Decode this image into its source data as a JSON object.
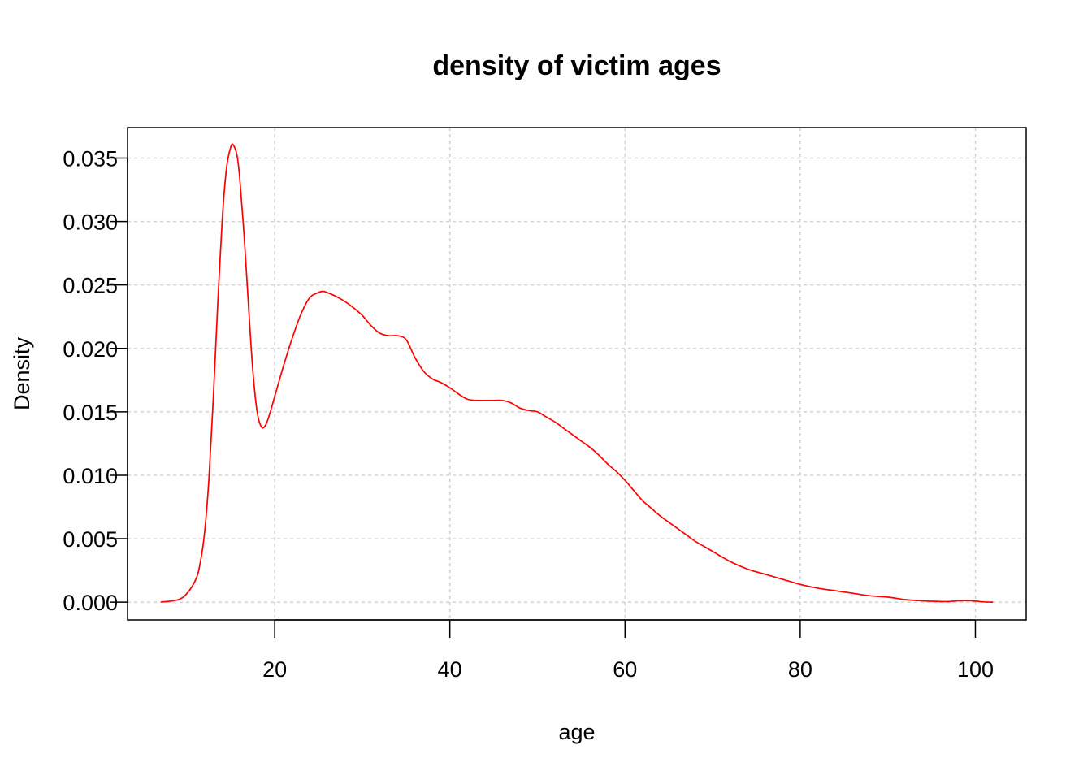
{
  "chart_data": {
    "type": "line",
    "title": "density of victim ages",
    "xlabel": "age",
    "ylabel": "Density",
    "xlim": [
      3.2,
      105.8
    ],
    "ylim": [
      -0.0014,
      0.0374
    ],
    "x_ticks": [
      20,
      40,
      60,
      80,
      100
    ],
    "y_ticks": [
      0.0,
      0.005,
      0.01,
      0.015,
      0.02,
      0.025,
      0.03,
      0.035
    ],
    "y_tick_labels": [
      "0.000",
      "0.005",
      "0.010",
      "0.015",
      "0.020",
      "0.025",
      "0.030",
      "0.035"
    ],
    "x_tick_labels": [
      "20",
      "40",
      "60",
      "80",
      "100"
    ],
    "grid": true,
    "legend": false,
    "line_color": "#ff0000",
    "series": [
      {
        "color": "#ff0000",
        "x": [
          7,
          9,
          10,
          11,
          11.5,
          12,
          12.5,
          13,
          13.5,
          14,
          14.5,
          15,
          15.3,
          15.7,
          16,
          16.5,
          17,
          17.5,
          18,
          18.5,
          19,
          19.5,
          20,
          21,
          22,
          23,
          24,
          25,
          25.5,
          26,
          27,
          28,
          29,
          30,
          31,
          32,
          33,
          34,
          35,
          36,
          37,
          38,
          39,
          40,
          41,
          42,
          43,
          44,
          45,
          46,
          47,
          48,
          49,
          50,
          51,
          52,
          53,
          54,
          55,
          56,
          57,
          58,
          59,
          60,
          61,
          62,
          63,
          64,
          65,
          66,
          67,
          68,
          69,
          70,
          72,
          74,
          76,
          78,
          80,
          82,
          84,
          86,
          88,
          90,
          92,
          94,
          96,
          97,
          98,
          99,
          100,
          101,
          102
        ],
        "y": [
          0.0,
          0.0002,
          0.0007,
          0.0018,
          0.0031,
          0.0055,
          0.0098,
          0.0162,
          0.0235,
          0.03,
          0.0342,
          0.0359,
          0.036,
          0.0352,
          0.0335,
          0.029,
          0.0235,
          0.0183,
          0.015,
          0.0138,
          0.014,
          0.015,
          0.0162,
          0.0186,
          0.0208,
          0.0227,
          0.024,
          0.0244,
          0.0245,
          0.0244,
          0.0241,
          0.0237,
          0.0232,
          0.0226,
          0.0218,
          0.0212,
          0.021,
          0.021,
          0.0207,
          0.0193,
          0.0182,
          0.0176,
          0.0173,
          0.0169,
          0.0164,
          0.016,
          0.0159,
          0.0159,
          0.0159,
          0.0159,
          0.0157,
          0.0153,
          0.0151,
          0.015,
          0.0146,
          0.0142,
          0.0137,
          0.0132,
          0.0127,
          0.0122,
          0.0116,
          0.0109,
          0.0103,
          0.0096,
          0.0088,
          0.008,
          0.0074,
          0.0068,
          0.0063,
          0.0058,
          0.0053,
          0.0048,
          0.0044,
          0.004,
          0.0032,
          0.0026,
          0.0022,
          0.0018,
          0.0014,
          0.0011,
          0.0009,
          0.0007,
          0.0005,
          0.0004,
          0.0002,
          0.0001,
          5e-05,
          5e-05,
          0.0001,
          0.00012,
          8e-05,
          2e-05,
          0.0
        ]
      }
    ]
  }
}
